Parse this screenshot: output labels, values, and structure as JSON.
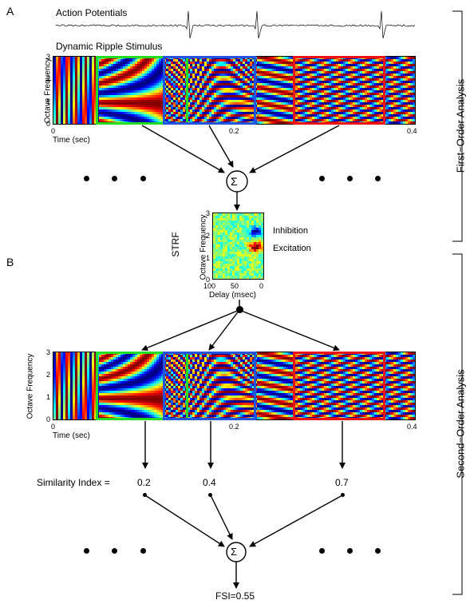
{
  "panels": {
    "a": "A",
    "b": "B"
  },
  "top": {
    "action_potentials": "Action Potentials",
    "stimulus_title": "Dynamic Ripple Stimulus"
  },
  "axes": {
    "ylabel": "Octave Frequency",
    "xlabel": "Time (sec)",
    "yticks": [
      "3",
      "2",
      "1",
      "0"
    ],
    "xticks": [
      "0",
      "0.2",
      "0.4"
    ]
  },
  "sum_symbol": "Σ",
  "strf": {
    "label": "STRF",
    "ylabel": "Octave Frequency",
    "xlabel": "Delay (msec)",
    "yticks": [
      "3",
      "2",
      "1",
      "0"
    ],
    "xticks": [
      "100",
      "50",
      "0"
    ],
    "inhibition": "Inhibition",
    "excitation": "Excitation"
  },
  "similarity": {
    "label": "Similarity Index =",
    "values": [
      "0.2",
      "0.4",
      "0.7"
    ]
  },
  "fsi": "FSI=0.55",
  "side_labels": {
    "first": "First−Order Analysis",
    "second": "Second−Order Analysis"
  },
  "colors": {
    "green_window": "#22dd22",
    "blue_window": "#2255dd",
    "red_window": "#ee1111",
    "inhibition": "#2244ff",
    "excitation": "#ff2200"
  }
}
